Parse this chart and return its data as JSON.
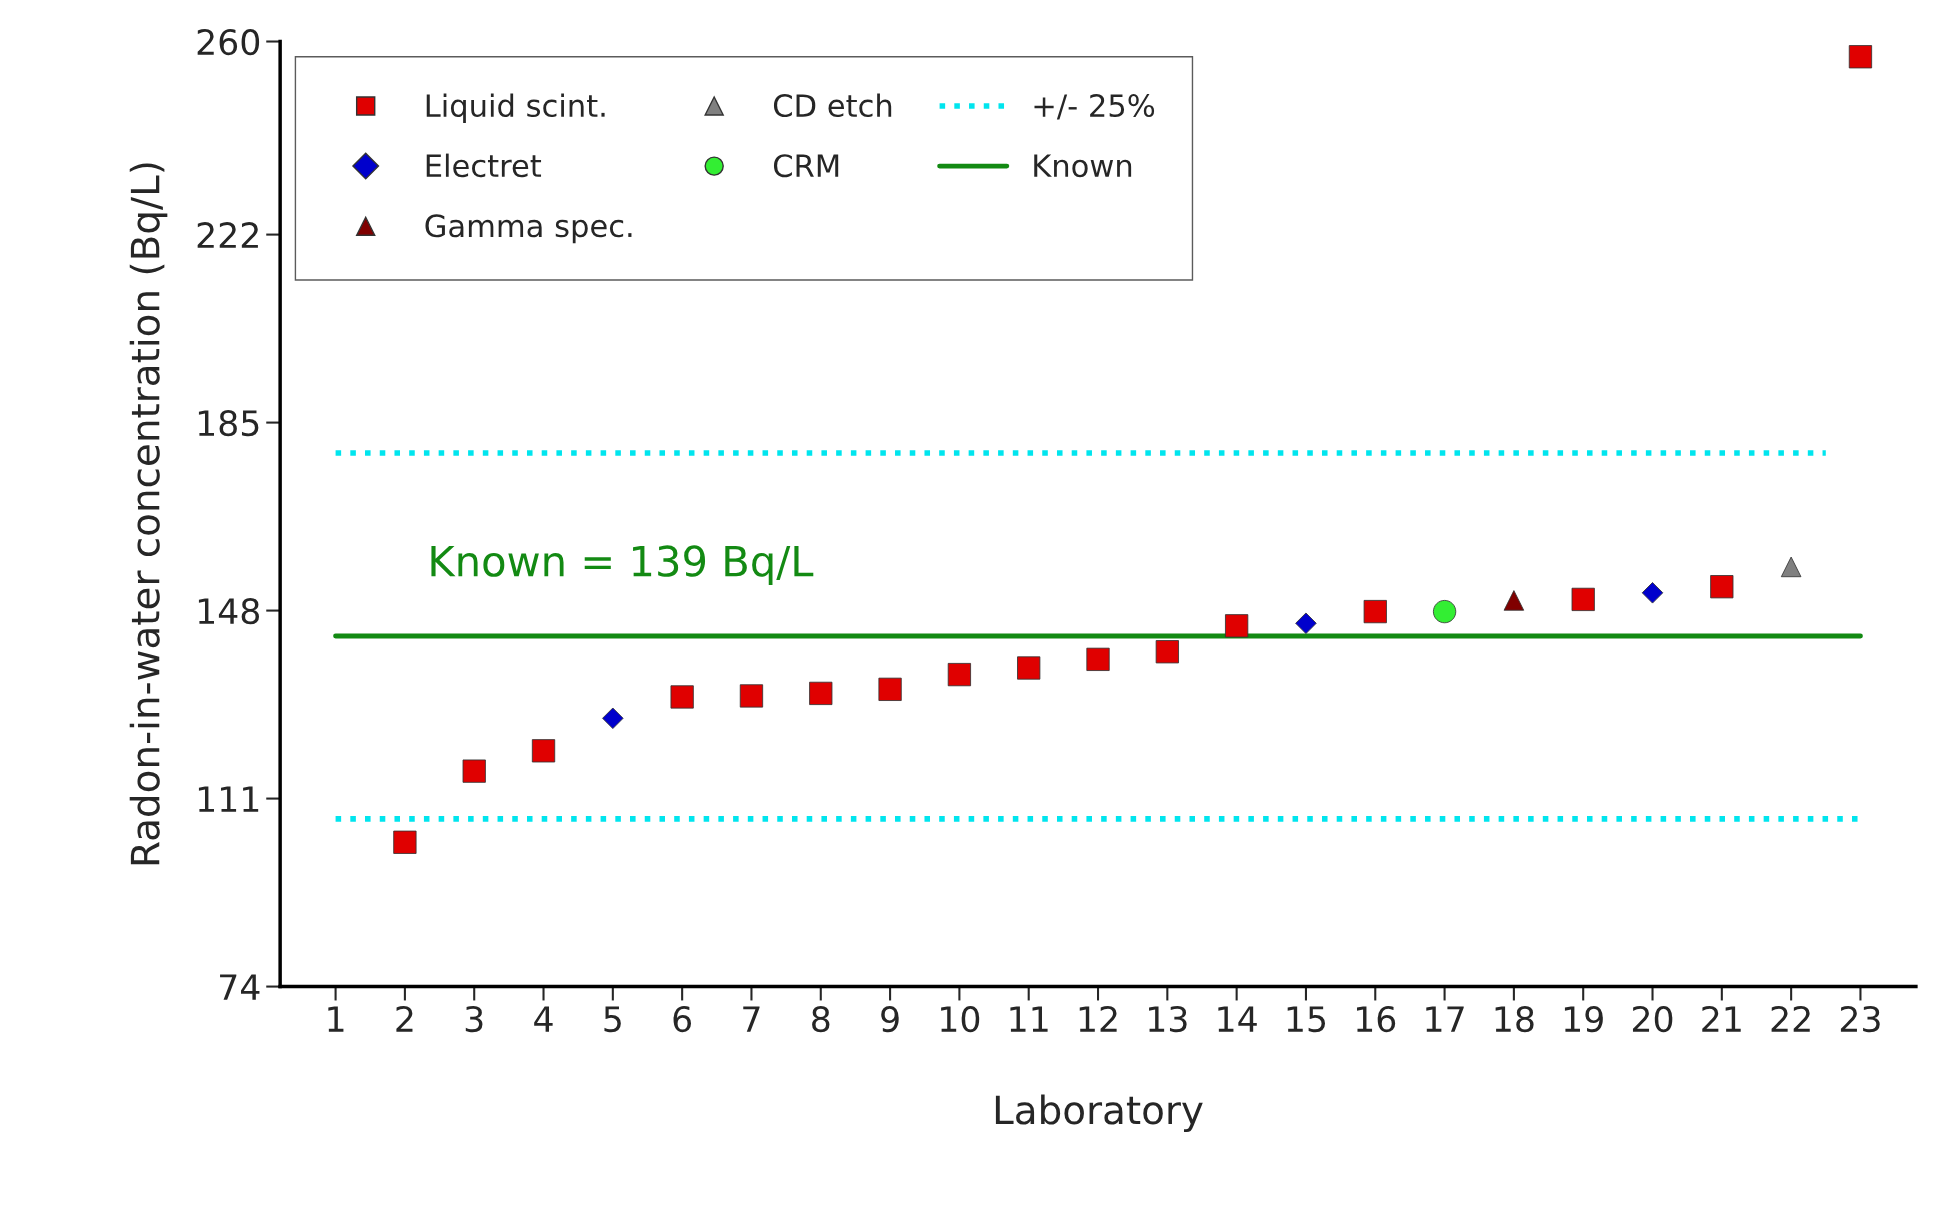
{
  "chart_data": {
    "type": "scatter",
    "xlabel": "Laboratory",
    "ylabel": "Radon-in-water concentration (Bq/L)",
    "xlim": [
      0.2,
      23.8
    ],
    "xticks": [
      1,
      2,
      3,
      4,
      5,
      6,
      7,
      8,
      9,
      10,
      11,
      12,
      13,
      14,
      15,
      16,
      17,
      18,
      19,
      20,
      21,
      22,
      23
    ],
    "ylim": [
      74,
      260
    ],
    "yticks": [
      74,
      111,
      148,
      185,
      222,
      260
    ],
    "grid": false,
    "legend": "top left",
    "series": [
      {
        "name": "Liquid scint.",
        "color": "#e00000",
        "marker": "square",
        "x": [
          2,
          3,
          4,
          6,
          7,
          8,
          9,
          10,
          11,
          12,
          13,
          14,
          16,
          19,
          21,
          23
        ],
        "values": [
          102.4,
          116.4,
          120.4,
          131.0,
          131.2,
          131.7,
          132.5,
          135.4,
          136.7,
          138.4,
          139.9,
          145.0,
          147.8,
          150.2,
          152.7,
          257.0
        ]
      },
      {
        "name": "Electret",
        "color": "#0000cc",
        "marker": "diamond",
        "x": [
          5,
          15,
          20
        ],
        "values": [
          126.8,
          145.5,
          151.5
        ]
      },
      {
        "name": "Gamma spec.",
        "color": "#800000",
        "marker": "triangle",
        "x": [
          18
        ],
        "values": [
          150.0
        ]
      },
      {
        "name": "CD etch",
        "color": "#808080",
        "marker": "triangle",
        "x": [
          22
        ],
        "values": [
          156.6
        ]
      },
      {
        "name": "CRM",
        "color": "#33ee33",
        "marker": "circle",
        "x": [
          17
        ],
        "values": [
          147.8
        ]
      },
      {
        "name": "+/- 25%",
        "type": "line",
        "color": "#00e5ee",
        "line_style": "dotted",
        "marker": "none",
        "x": [
          1,
          22.5
        ],
        "values": [
          179,
          179
        ]
      },
      {
        "name": "Known",
        "type": "line",
        "color": "#138a13",
        "line_style": "solid",
        "marker": "none",
        "x": [
          1,
          23
        ],
        "values": [
          143,
          143
        ]
      },
      {
        "type": "line",
        "color": "#00e5ee",
        "line_style": "dotted",
        "marker": "none",
        "x": [
          1,
          23
        ],
        "values": [
          107,
          107
        ]
      }
    ],
    "annotations": [
      "Known = 139 Bq/L"
    ]
  }
}
